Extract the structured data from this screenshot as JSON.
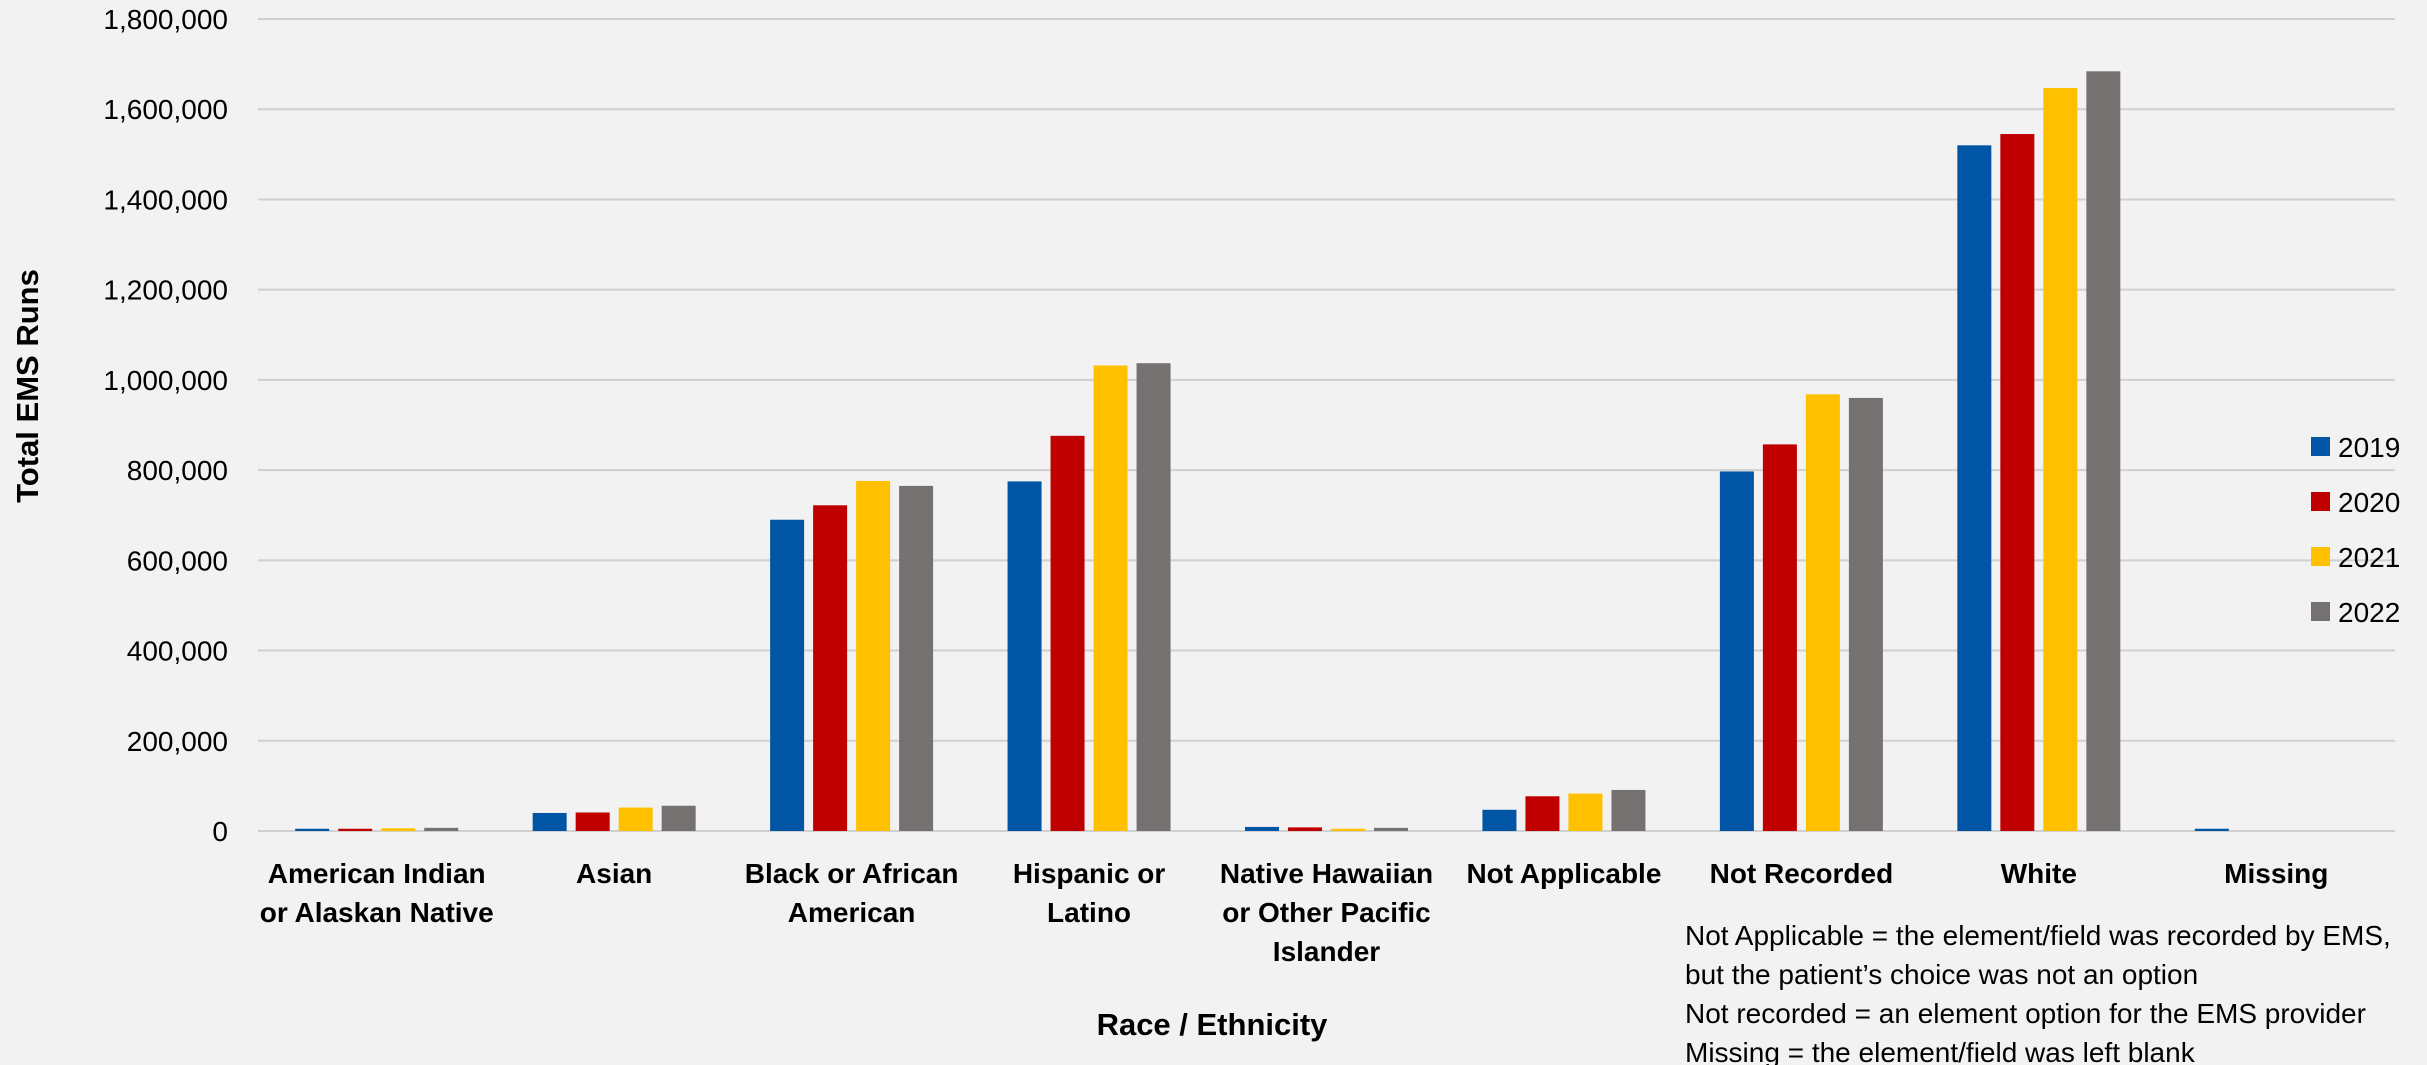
{
  "chart_data": {
    "type": "bar",
    "title": "",
    "xlabel": "Race / Ethnicity",
    "ylabel": "Total EMS Runs",
    "ylim": [
      0,
      1800000
    ],
    "yticks": [
      0,
      200000,
      400000,
      600000,
      800000,
      1000000,
      1200000,
      1400000,
      1600000,
      1800000
    ],
    "ytick_labels": [
      "0",
      "200,000",
      "400,000",
      "600,000",
      "800,000",
      "1,000,000",
      "1,200,000",
      "1,400,000",
      "1,600,000",
      "1,800,000"
    ],
    "grid": true,
    "legend_position": "right",
    "categories": [
      [
        "American Indian",
        "or Alaskan Native"
      ],
      [
        "Asian"
      ],
      [
        "Black or African",
        "American"
      ],
      [
        "Hispanic or",
        "Latino"
      ],
      [
        "Native Hawaiian",
        "or Other Pacific",
        "Islander"
      ],
      [
        "Not Applicable"
      ],
      [
        "Not Recorded"
      ],
      [
        "White"
      ],
      [
        "Missing"
      ]
    ],
    "series": [
      {
        "name": "2019",
        "color": "#0056a4",
        "values": [
          5000,
          40000,
          690000,
          775000,
          9000,
          47000,
          797000,
          1520000,
          5000
        ]
      },
      {
        "name": "2020",
        "color": "#c00000",
        "values": [
          5000,
          41000,
          722000,
          876000,
          8000,
          77000,
          857000,
          1545000,
          0
        ]
      },
      {
        "name": "2021",
        "color": "#ffc000",
        "values": [
          6000,
          52000,
          776000,
          1032000,
          5000,
          83000,
          968000,
          1647000,
          0
        ]
      },
      {
        "name": "2022",
        "color": "#767171",
        "values": [
          7000,
          56000,
          765000,
          1037000,
          7000,
          91000,
          960000,
          1684000,
          0
        ]
      }
    ],
    "notes": [
      "Not Applicable = the element/field was recorded by EMS,",
      "but the patient’s choice was not an option",
      "Not recorded = an element option for the EMS provider",
      "Missing = the element/field was left blank"
    ]
  }
}
